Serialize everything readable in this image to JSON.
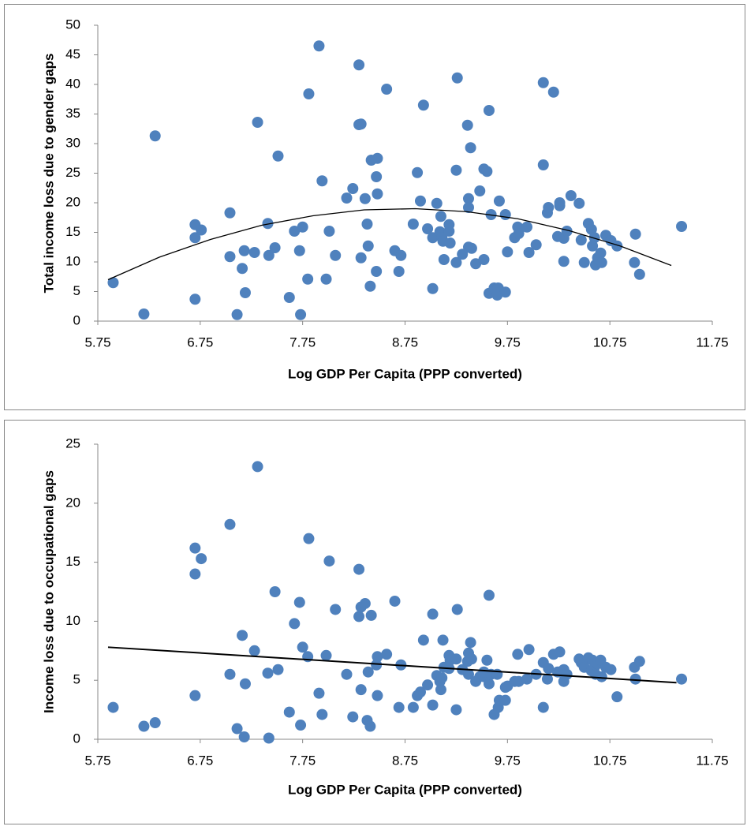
{
  "chart_data": [
    {
      "type": "scatter",
      "x_label": "Log GDP Per Capita (PPP converted)",
      "y_label": "Total income loss due to gender gaps",
      "xlim": [
        5.75,
        11.75
      ],
      "xticks": [
        5.75,
        6.75,
        7.75,
        8.75,
        9.75,
        10.75,
        11.75
      ],
      "ylim": [
        0,
        50
      ],
      "yticks": [
        0,
        5,
        10,
        15,
        20,
        25,
        30,
        35,
        40,
        45,
        50
      ],
      "series": [
        {
          "type": "scatter",
          "color": "#4f81bd",
          "x": [
            5.9,
            6.2,
            6.31,
            6.7,
            6.7,
            6.76,
            6.7,
            7.04,
            7.04,
            7.11,
            7.16,
            7.18,
            7.19,
            7.28,
            7.31,
            7.41,
            7.42,
            7.48,
            7.51,
            7.62,
            7.67,
            7.72,
            7.73,
            7.75,
            7.8,
            7.81,
            7.91,
            7.94,
            7.98,
            8.01,
            8.07,
            8.18,
            8.24,
            8.3,
            8.3,
            8.32,
            8.32,
            8.36,
            8.38,
            8.39,
            8.41,
            8.42,
            8.47,
            8.47,
            8.48,
            8.48,
            8.57,
            8.65,
            8.71,
            8.69,
            8.83,
            8.87,
            8.9,
            8.93,
            8.97,
            9.02,
            9.02,
            9.06,
            9.09,
            9.1,
            9.11,
            9.12,
            9.13,
            9.18,
            9.18,
            9.19,
            9.25,
            9.25,
            9.26,
            9.31,
            9.36,
            9.37,
            9.37,
            9.37,
            9.39,
            9.4,
            9.44,
            9.48,
            9.52,
            9.55,
            9.52,
            9.57,
            9.57,
            9.59,
            9.62,
            9.65,
            9.66,
            9.67,
            9.73,
            9.73,
            9.75,
            9.82,
            9.85,
            9.86,
            9.94,
            9.96,
            10.03,
            10.1,
            10.1,
            10.14,
            10.15,
            10.2,
            10.24,
            10.26,
            10.26,
            10.3,
            10.3,
            10.33,
            10.37,
            10.45,
            10.47,
            10.5,
            10.54,
            10.57,
            10.58,
            10.6,
            10.61,
            10.63,
            10.66,
            10.67,
            10.71,
            10.76,
            10.82,
            10.99,
            11.0,
            11.04,
            11.45
          ],
          "values": [
            6.5,
            1.2,
            31.3,
            16.3,
            14.1,
            15.4,
            3.7,
            18.3,
            10.9,
            1.1,
            8.9,
            11.9,
            4.8,
            11.6,
            33.6,
            16.5,
            11.1,
            12.4,
            27.9,
            4.0,
            15.2,
            11.9,
            1.1,
            15.9,
            7.1,
            38.4,
            46.5,
            23.7,
            7.1,
            15.2,
            11.1,
            20.8,
            22.4,
            43.3,
            33.2,
            33.3,
            10.7,
            20.7,
            16.4,
            12.7,
            5.9,
            27.2,
            24.4,
            8.4,
            21.5,
            27.5,
            39.2,
            11.9,
            11.1,
            8.4,
            16.4,
            25.1,
            20.3,
            36.5,
            15.6,
            5.5,
            14.1,
            19.9,
            15.1,
            17.7,
            14.1,
            13.5,
            10.4,
            15.2,
            16.3,
            13.2,
            25.5,
            9.9,
            41.1,
            11.3,
            33.1,
            20.7,
            19.2,
            12.5,
            29.3,
            12.3,
            9.7,
            22.0,
            25.7,
            25.3,
            10.4,
            35.6,
            4.7,
            18.0,
            5.6,
            4.4,
            5.6,
            20.3,
            4.9,
            18.0,
            11.7,
            14.1,
            15.9,
            14.8,
            15.9,
            11.6,
            12.9,
            40.3,
            26.4,
            18.3,
            19.2,
            38.7,
            14.3,
            19.5,
            20.0,
            14.0,
            10.1,
            15.2,
            21.2,
            19.9,
            13.7,
            9.9,
            16.5,
            15.5,
            12.7,
            14.1,
            9.5,
            10.7,
            11.5,
            9.9,
            14.5,
            13.6,
            12.7,
            9.9,
            14.7,
            7.9,
            16.0
          ]
        },
        {
          "type": "line",
          "color": "#000000",
          "x": [
            5.85,
            6.35,
            6.85,
            7.35,
            7.85,
            8.35,
            8.85,
            9.35,
            9.85,
            10.35,
            10.85,
            11.35
          ],
          "values": [
            7.0,
            10.8,
            13.8,
            16.2,
            17.8,
            18.8,
            19.0,
            18.5,
            17.3,
            15.3,
            12.7,
            9.4
          ]
        }
      ]
    },
    {
      "type": "scatter",
      "x_label": "Log GDP Per Capita (PPP converted)",
      "y_label": "Income loss due to occupational gaps",
      "xlim": [
        5.75,
        11.75
      ],
      "xticks": [
        5.75,
        6.75,
        7.75,
        8.75,
        9.75,
        10.75,
        11.75
      ],
      "ylim": [
        0,
        25
      ],
      "yticks": [
        0,
        5,
        10,
        15,
        20,
        25
      ],
      "series": [
        {
          "type": "scatter",
          "color": "#4f81bd",
          "x": [
            5.9,
            6.2,
            6.31,
            6.7,
            6.7,
            6.76,
            6.7,
            7.04,
            7.04,
            7.11,
            7.16,
            7.18,
            7.19,
            7.28,
            7.31,
            7.41,
            7.42,
            7.48,
            7.51,
            7.62,
            7.67,
            7.72,
            7.73,
            7.75,
            7.8,
            7.81,
            7.91,
            7.94,
            7.98,
            8.01,
            8.07,
            8.18,
            8.24,
            8.3,
            8.3,
            8.32,
            8.32,
            8.36,
            8.38,
            8.39,
            8.41,
            8.42,
            8.47,
            8.48,
            8.48,
            8.57,
            8.65,
            8.71,
            8.69,
            8.83,
            8.87,
            8.9,
            8.93,
            8.97,
            9.02,
            9.02,
            9.06,
            9.09,
            9.1,
            9.11,
            9.12,
            9.13,
            9.18,
            9.18,
            9.19,
            9.25,
            9.25,
            9.26,
            9.31,
            9.36,
            9.37,
            9.37,
            9.39,
            9.4,
            9.44,
            9.48,
            9.52,
            9.55,
            9.52,
            9.57,
            9.57,
            9.59,
            9.62,
            9.65,
            9.66,
            9.67,
            9.73,
            9.73,
            9.75,
            9.82,
            9.85,
            9.86,
            9.94,
            9.96,
            10.03,
            10.1,
            10.1,
            10.14,
            10.15,
            10.2,
            10.24,
            10.26,
            10.26,
            10.3,
            10.3,
            10.33,
            10.45,
            10.47,
            10.5,
            10.54,
            10.57,
            10.58,
            10.6,
            10.61,
            10.63,
            10.66,
            10.67,
            10.71,
            10.76,
            10.82,
            10.99,
            11.0,
            11.04,
            11.45
          ],
          "values": [
            2.7,
            1.1,
            1.4,
            16.2,
            14.0,
            15.3,
            3.7,
            18.2,
            5.5,
            0.9,
            8.8,
            0.2,
            4.7,
            7.5,
            23.1,
            5.6,
            0.1,
            12.5,
            5.9,
            2.3,
            9.8,
            11.6,
            1.2,
            7.8,
            7.0,
            17.0,
            3.9,
            2.1,
            7.1,
            15.1,
            11.0,
            5.5,
            1.9,
            14.4,
            10.4,
            11.2,
            4.2,
            11.5,
            1.6,
            5.7,
            1.1,
            10.5,
            6.3,
            3.7,
            7.0,
            7.2,
            11.7,
            6.3,
            2.7,
            2.7,
            3.7,
            4.0,
            8.4,
            4.6,
            2.9,
            10.6,
            5.4,
            4.9,
            4.2,
            5.2,
            8.4,
            6.1,
            7.1,
            6.0,
            6.7,
            6.8,
            2.5,
            11.0,
            5.9,
            6.6,
            7.3,
            5.5,
            8.2,
            6.8,
            4.9,
            5.3,
            5.3,
            6.7,
            5.7,
            12.2,
            4.7,
            5.5,
            2.1,
            5.5,
            2.7,
            3.3,
            3.3,
            4.4,
            4.5,
            4.9,
            7.2,
            4.9,
            5.1,
            7.6,
            5.5,
            2.7,
            6.5,
            5.1,
            6.0,
            7.2,
            5.7,
            5.7,
            7.4,
            5.9,
            4.9,
            5.5,
            6.8,
            6.5,
            6.1,
            6.9,
            5.8,
            6.7,
            6.1,
            5.5,
            6.4,
            6.7,
            5.3,
            6.1,
            5.9,
            3.6,
            6.1,
            5.1,
            6.6,
            5.1
          ]
        },
        {
          "type": "line",
          "color": "#000000",
          "x": [
            5.85,
            11.4
          ],
          "values": [
            7.8,
            4.8
          ]
        }
      ]
    }
  ]
}
